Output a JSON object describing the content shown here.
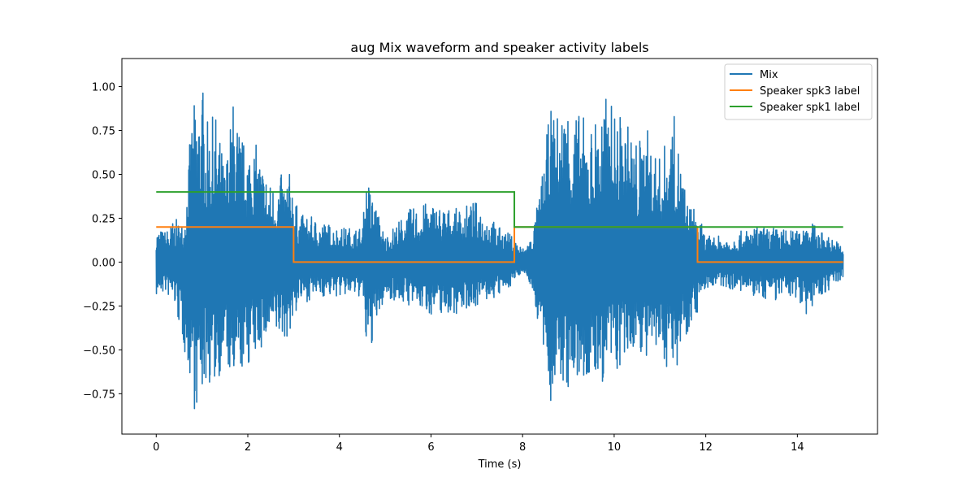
{
  "chart_data": {
    "type": "line",
    "title": "aug Mix waveform and speaker activity labels",
    "xlabel": "Time (s)",
    "ylabel": "",
    "xlim": [
      -0.75,
      15.75
    ],
    "ylim": [
      -0.98,
      1.16
    ],
    "xticks": [
      0,
      2,
      4,
      6,
      8,
      10,
      12,
      14
    ],
    "xtick_labels": [
      "0",
      "2",
      "4",
      "6",
      "8",
      "10",
      "12",
      "14"
    ],
    "yticks": [
      -0.75,
      -0.5,
      -0.25,
      0.0,
      0.25,
      0.5,
      0.75,
      1.0
    ],
    "ytick_labels": [
      "−0.75",
      "−0.50",
      "−0.25",
      "0.00",
      "0.25",
      "0.50",
      "0.75",
      "1.00"
    ],
    "grid": false,
    "legend": "top-right",
    "series": [
      {
        "name": "Mix",
        "kind": "waveform",
        "color": "#1f77b4",
        "envelope": {
          "t": [
            0.0,
            0.2,
            0.4,
            0.6,
            0.8,
            0.85,
            1.0,
            1.05,
            1.1,
            1.3,
            1.5,
            1.7,
            1.75,
            1.9,
            2.1,
            2.3,
            2.5,
            2.7,
            2.8,
            2.95,
            3.1,
            3.5,
            4.0,
            4.5,
            4.6,
            5.0,
            5.5,
            6.0,
            6.5,
            7.0,
            7.5,
            7.8,
            8.0,
            8.2,
            8.4,
            8.6,
            8.75,
            9.0,
            9.25,
            9.5,
            9.8,
            10.0,
            10.3,
            10.5,
            10.7,
            11.0,
            11.3,
            11.6,
            11.8,
            12.0,
            12.5,
            13.0,
            13.5,
            14.0,
            14.2,
            14.5,
            15.0
          ],
          "max": [
            0.2,
            0.18,
            0.25,
            0.22,
            0.92,
            0.9,
            1.06,
            0.95,
            0.8,
            0.85,
            0.55,
            0.98,
            0.85,
            0.7,
            0.72,
            0.6,
            0.45,
            0.5,
            0.5,
            0.52,
            0.28,
            0.25,
            0.2,
            0.2,
            0.5,
            0.15,
            0.3,
            0.35,
            0.3,
            0.35,
            0.2,
            0.15,
            0.08,
            0.15,
            0.45,
            0.88,
            0.85,
            0.95,
            0.85,
            0.8,
            0.95,
            0.9,
            0.8,
            0.7,
            0.78,
            0.6,
            0.85,
            0.35,
            0.3,
            0.15,
            0.15,
            0.2,
            0.2,
            0.18,
            0.26,
            0.18,
            0.1
          ],
          "min": [
            -0.2,
            -0.18,
            -0.25,
            -0.5,
            -0.75,
            -0.88,
            -0.78,
            -0.72,
            -0.7,
            -0.72,
            -0.55,
            -0.8,
            -0.7,
            -0.62,
            -0.58,
            -0.5,
            -0.45,
            -0.45,
            -0.45,
            -0.4,
            -0.25,
            -0.2,
            -0.2,
            -0.2,
            -0.58,
            -0.2,
            -0.25,
            -0.3,
            -0.3,
            -0.25,
            -0.2,
            -0.12,
            -0.05,
            -0.15,
            -0.45,
            -0.82,
            -0.7,
            -0.75,
            -0.72,
            -0.7,
            -0.7,
            -0.65,
            -0.6,
            -0.45,
            -0.6,
            -0.55,
            -0.65,
            -0.4,
            -0.3,
            -0.15,
            -0.15,
            -0.2,
            -0.22,
            -0.2,
            -0.3,
            -0.2,
            -0.1
          ]
        }
      },
      {
        "name": "Speaker spk3 label",
        "kind": "step",
        "color": "#ff7f0e",
        "x": [
          0.0,
          3.0,
          3.0,
          7.82,
          7.82,
          11.82,
          11.82,
          15.0
        ],
        "y": [
          0.2,
          0.2,
          0.0,
          0.0,
          0.2,
          0.2,
          0.0,
          0.0
        ]
      },
      {
        "name": "Speaker spk1 label",
        "kind": "step",
        "color": "#2ca02c",
        "x": [
          0.0,
          7.82,
          7.82,
          15.0
        ],
        "y": [
          0.4,
          0.4,
          0.2,
          0.2
        ]
      }
    ]
  }
}
